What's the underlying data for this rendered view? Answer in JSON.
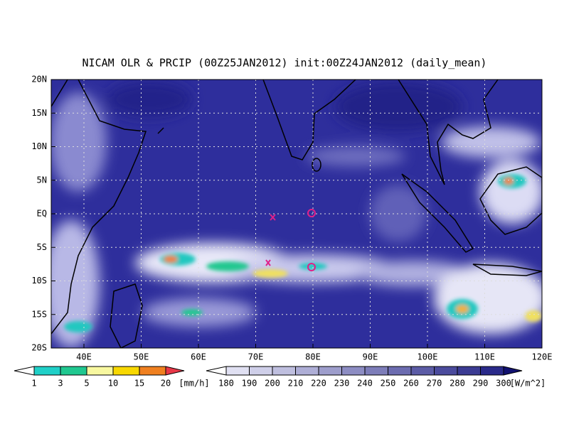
{
  "title": "NICAM OLR & PRCIP (00Z25JAN2012) init:00Z24JAN2012 (daily_mean)",
  "map": {
    "lat_labels": [
      "20N",
      "15N",
      "10N",
      "5N",
      "EQ",
      "5S",
      "10S",
      "15S",
      "20S"
    ],
    "lon_labels": [
      "40E",
      "50E",
      "60E",
      "70E",
      "80E",
      "90E",
      "100E",
      "110E",
      "120E"
    ]
  },
  "precip_legend": {
    "labels": [
      1,
      3,
      5,
      10,
      15,
      20
    ],
    "unit": "[mm/h]"
  },
  "olr_legend": {
    "labels": [
      180,
      190,
      200,
      210,
      220,
      230,
      240,
      250,
      260,
      270,
      280,
      290,
      300
    ],
    "unit": "[W/m^2]"
  }
}
